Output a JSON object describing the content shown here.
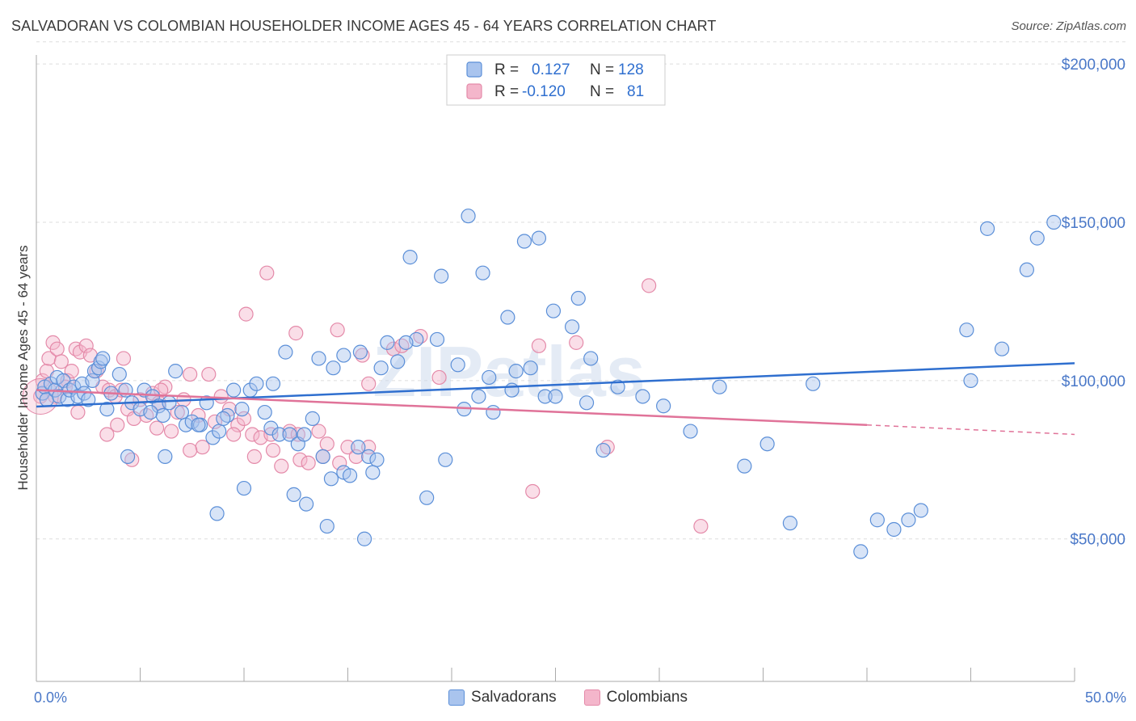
{
  "header": {
    "title": "SALVADORAN VS COLOMBIAN HOUSEHOLDER INCOME AGES 45 - 64 YEARS CORRELATION CHART",
    "source": "Source: ZipAtlas.com"
  },
  "watermark": "ZIPatlas",
  "colors": {
    "blue_fill": "#a9c4ee",
    "blue_stroke": "#5b8fd8",
    "blue_line": "#2f6fcf",
    "pink_fill": "#f4b6cb",
    "pink_stroke": "#e48aa9",
    "pink_line": "#e07399",
    "tick_text": "#4a78c8",
    "grid": "#dddddd"
  },
  "legend": {
    "rows": [
      {
        "r_label": "R =",
        "r_value": "0.127",
        "n_label": "N =",
        "n_value": "128"
      },
      {
        "r_label": "R =",
        "r_value": "-0.120",
        "n_label": "N =",
        "n_value": "81"
      }
    ]
  },
  "bottom_legend": [
    "Salvadorans",
    "Colombians"
  ],
  "chart_data": {
    "type": "scatter",
    "title": "SALVADORAN VS COLOMBIAN HOUSEHOLDER INCOME AGES 45 - 64 YEARS CORRELATION CHART",
    "xlabel": "",
    "ylabel": "Householder Income Ages 45 - 64 years",
    "xlim": [
      0,
      50
    ],
    "ylim": [
      5000,
      210000
    ],
    "x_tick_labels": [
      "0.0%",
      "50.0%"
    ],
    "y_ticks": [
      50000,
      100000,
      150000,
      200000
    ],
    "y_tick_labels": [
      "$50,000",
      "$100,000",
      "$150,000",
      "$200,000"
    ],
    "grid": true,
    "legend_position": "top-center",
    "series": [
      {
        "name": "Salvadorans",
        "r": 0.127,
        "n": 128,
        "trend": {
          "x": [
            0,
            50
          ],
          "y": [
            91800,
            105500
          ]
        },
        "points": [
          [
            0.3,
            96000
          ],
          [
            0.4,
            98000
          ],
          [
            0.5,
            94000
          ],
          [
            0.7,
            99000
          ],
          [
            0.9,
            97000
          ],
          [
            1.0,
            101000
          ],
          [
            1.1,
            95000
          ],
          [
            1.3,
            100000
          ],
          [
            1.5,
            94000
          ],
          [
            1.6,
            97000
          ],
          [
            1.8,
            98000
          ],
          [
            2.0,
            95000
          ],
          [
            2.2,
            99000
          ],
          [
            2.3,
            96000
          ],
          [
            2.5,
            94000
          ],
          [
            2.7,
            100000
          ],
          [
            2.8,
            103000
          ],
          [
            3.0,
            104000
          ],
          [
            3.1,
            106000
          ],
          [
            3.2,
            107000
          ],
          [
            3.4,
            91000
          ],
          [
            3.6,
            96000
          ],
          [
            4.0,
            102000
          ],
          [
            4.3,
            97000
          ],
          [
            4.6,
            93000
          ],
          [
            5.0,
            91000
          ],
          [
            5.2,
            97000
          ],
          [
            5.6,
            95000
          ],
          [
            5.9,
            92000
          ],
          [
            6.1,
            89000
          ],
          [
            6.4,
            93000
          ],
          [
            6.7,
            103000
          ],
          [
            7.0,
            90000
          ],
          [
            7.2,
            86000
          ],
          [
            7.5,
            87000
          ],
          [
            7.9,
            86000
          ],
          [
            8.2,
            93000
          ],
          [
            8.5,
            82000
          ],
          [
            8.8,
            84000
          ],
          [
            9.2,
            89000
          ],
          [
            9.5,
            97000
          ],
          [
            9.9,
            91000
          ],
          [
            10.3,
            97000
          ],
          [
            10.6,
            99000
          ],
          [
            11.0,
            90000
          ],
          [
            11.3,
            85000
          ],
          [
            11.7,
            83000
          ],
          [
            12.2,
            83000
          ],
          [
            12.6,
            80000
          ],
          [
            12.9,
            83000
          ],
          [
            13.3,
            88000
          ],
          [
            13.8,
            76000
          ],
          [
            14.2,
            69000
          ],
          [
            14.8,
            71000
          ],
          [
            15.1,
            70000
          ],
          [
            15.5,
            79000
          ],
          [
            16.0,
            76000
          ],
          [
            16.4,
            75000
          ],
          [
            6.2,
            76000
          ],
          [
            4.4,
            76000
          ],
          [
            10.0,
            66000
          ],
          [
            8.7,
            58000
          ],
          [
            12.4,
            64000
          ],
          [
            13.0,
            61000
          ],
          [
            14.0,
            54000
          ],
          [
            15.8,
            50000
          ],
          [
            16.2,
            71000
          ],
          [
            18.8,
            63000
          ],
          [
            19.7,
            75000
          ],
          [
            20.6,
            91000
          ],
          [
            21.3,
            95000
          ],
          [
            22.0,
            90000
          ],
          [
            23.1,
            103000
          ],
          [
            23.8,
            104000
          ],
          [
            24.5,
            95000
          ],
          [
            25.0,
            95000
          ],
          [
            26.5,
            93000
          ],
          [
            27.3,
            78000
          ],
          [
            28.0,
            98000
          ],
          [
            29.2,
            95000
          ],
          [
            30.2,
            92000
          ],
          [
            31.5,
            84000
          ],
          [
            32.9,
            98000
          ],
          [
            34.1,
            73000
          ],
          [
            35.2,
            80000
          ],
          [
            36.3,
            55000
          ],
          [
            37.4,
            99000
          ],
          [
            39.7,
            46000
          ],
          [
            40.5,
            56000
          ],
          [
            41.3,
            53000
          ],
          [
            42.0,
            56000
          ],
          [
            42.6,
            59000
          ],
          [
            44.8,
            116000
          ],
          [
            45.0,
            100000
          ],
          [
            46.5,
            110000
          ],
          [
            47.7,
            135000
          ],
          [
            48.2,
            145000
          ],
          [
            49.0,
            150000
          ],
          [
            45.8,
            148000
          ],
          [
            20.8,
            152000
          ],
          [
            18.0,
            139000
          ],
          [
            19.5,
            133000
          ],
          [
            21.5,
            134000
          ],
          [
            23.5,
            144000
          ],
          [
            24.2,
            145000
          ],
          [
            25.8,
            117000
          ],
          [
            26.7,
            107000
          ],
          [
            22.7,
            120000
          ],
          [
            24.9,
            122000
          ],
          [
            26.1,
            126000
          ],
          [
            16.6,
            104000
          ],
          [
            17.4,
            106000
          ],
          [
            18.3,
            113000
          ],
          [
            19.3,
            113000
          ],
          [
            20.3,
            105000
          ],
          [
            21.8,
            101000
          ],
          [
            22.9,
            97000
          ],
          [
            14.3,
            104000
          ],
          [
            14.8,
            108000
          ],
          [
            15.6,
            109000
          ],
          [
            16.9,
            112000
          ],
          [
            17.8,
            112000
          ],
          [
            12.0,
            109000
          ],
          [
            11.4,
            99000
          ],
          [
            13.6,
            107000
          ],
          [
            9.0,
            88000
          ],
          [
            7.8,
            86000
          ],
          [
            5.5,
            90000
          ]
        ]
      },
      {
        "name": "Colombians",
        "r": -0.12,
        "n": 81,
        "trend": {
          "x": [
            0,
            40
          ],
          "y": [
            97000,
            86000
          ]
        },
        "trend_dashed": {
          "x": [
            40,
            50
          ],
          "y": [
            86000,
            83000
          ]
        },
        "points": [
          [
            0.2,
            95000
          ],
          [
            0.3,
            100000
          ],
          [
            0.5,
            103000
          ],
          [
            0.6,
            107000
          ],
          [
            0.8,
            112000
          ],
          [
            1.0,
            110000
          ],
          [
            1.2,
            106000
          ],
          [
            1.5,
            100000
          ],
          [
            1.7,
            103000
          ],
          [
            1.9,
            110000
          ],
          [
            2.1,
            109000
          ],
          [
            2.4,
            111000
          ],
          [
            2.6,
            108000
          ],
          [
            2.9,
            103000
          ],
          [
            3.2,
            98000
          ],
          [
            3.5,
            97000
          ],
          [
            3.8,
            95000
          ],
          [
            4.1,
            97000
          ],
          [
            4.4,
            91000
          ],
          [
            4.7,
            88000
          ],
          [
            5.0,
            94000
          ],
          [
            5.3,
            89000
          ],
          [
            5.6,
            96000
          ],
          [
            5.9,
            93000
          ],
          [
            6.2,
            98000
          ],
          [
            6.5,
            84000
          ],
          [
            6.8,
            90000
          ],
          [
            7.1,
            94000
          ],
          [
            7.4,
            102000
          ],
          [
            7.8,
            89000
          ],
          [
            8.0,
            79000
          ],
          [
            8.3,
            102000
          ],
          [
            8.6,
            87000
          ],
          [
            8.9,
            95000
          ],
          [
            9.3,
            91000
          ],
          [
            9.7,
            86000
          ],
          [
            10.0,
            88000
          ],
          [
            10.4,
            83000
          ],
          [
            10.8,
            82000
          ],
          [
            11.3,
            83000
          ],
          [
            11.8,
            73000
          ],
          [
            12.2,
            84000
          ],
          [
            12.7,
            75000
          ],
          [
            13.1,
            74000
          ],
          [
            13.6,
            84000
          ],
          [
            14.0,
            80000
          ],
          [
            14.6,
            74000
          ],
          [
            15.0,
            79000
          ],
          [
            15.4,
            76000
          ],
          [
            16.0,
            79000
          ],
          [
            3.4,
            83000
          ],
          [
            4.6,
            75000
          ],
          [
            5.8,
            85000
          ],
          [
            7.4,
            78000
          ],
          [
            9.5,
            83000
          ],
          [
            10.5,
            76000
          ],
          [
            11.4,
            78000
          ],
          [
            12.6,
            83000
          ],
          [
            13.8,
            76000
          ],
          [
            17.2,
            110000
          ],
          [
            18.5,
            114000
          ],
          [
            19.4,
            101000
          ],
          [
            17.6,
            111000
          ],
          [
            11.1,
            134000
          ],
          [
            10.1,
            121000
          ],
          [
            15.7,
            108000
          ],
          [
            16.0,
            99000
          ],
          [
            12.5,
            115000
          ],
          [
            14.5,
            116000
          ],
          [
            23.9,
            65000
          ],
          [
            24.2,
            111000
          ],
          [
            26.0,
            112000
          ],
          [
            27.5,
            79000
          ],
          [
            29.5,
            130000
          ],
          [
            32.0,
            54000
          ],
          [
            3.9,
            86000
          ],
          [
            4.2,
            107000
          ],
          [
            2.0,
            90000
          ],
          [
            1.4,
            98000
          ],
          [
            0.9,
            95000
          ],
          [
            6.0,
            97000
          ]
        ]
      }
    ]
  }
}
